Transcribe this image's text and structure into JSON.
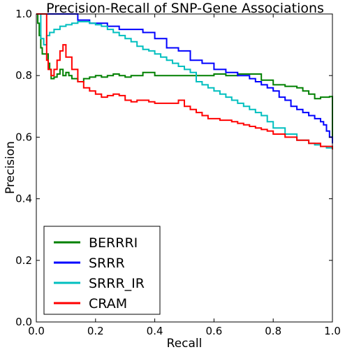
{
  "chart_data": {
    "type": "line",
    "title": "Precision-Recall of SNP-Gene Associations",
    "xlabel": "Recall",
    "ylabel": "Precision",
    "xlim": [
      0,
      1
    ],
    "ylim": [
      0,
      1
    ],
    "xticks": [
      "0.0",
      "0.2",
      "0.4",
      "0.6",
      "0.8",
      "1.0"
    ],
    "yticks": [
      "0.0",
      "0.2",
      "0.4",
      "0.6",
      "0.8",
      "1.0"
    ],
    "grid": false,
    "legend_position": "lower-left",
    "series": [
      {
        "name": "BERRRI",
        "color": "#008000",
        "x": [
          0.0,
          0.005,
          0.01,
          0.015,
          0.02,
          0.025,
          0.035,
          0.04,
          0.045,
          0.05,
          0.06,
          0.07,
          0.08,
          0.09,
          0.1,
          0.11,
          0.12,
          0.14,
          0.16,
          0.18,
          0.2,
          0.22,
          0.24,
          0.26,
          0.28,
          0.3,
          0.32,
          0.36,
          0.4,
          0.44,
          0.48,
          0.52,
          0.56,
          0.6,
          0.64,
          0.68,
          0.72,
          0.76,
          0.8,
          0.84,
          0.88,
          0.9,
          0.92,
          0.94,
          0.96,
          0.98,
          0.99,
          1.0
        ],
        "y": [
          1.0,
          0.97,
          0.93,
          0.89,
          0.87,
          0.87,
          0.87,
          0.84,
          0.82,
          0.79,
          0.795,
          0.805,
          0.82,
          0.8,
          0.81,
          0.8,
          0.79,
          0.78,
          0.79,
          0.795,
          0.8,
          0.795,
          0.8,
          0.805,
          0.8,
          0.795,
          0.8,
          0.81,
          0.8,
          0.8,
          0.8,
          0.8,
          0.8,
          0.805,
          0.8,
          0.805,
          0.805,
          0.785,
          0.77,
          0.765,
          0.76,
          0.75,
          0.74,
          0.725,
          0.73,
          0.73,
          0.732,
          0.6
        ]
      },
      {
        "name": "SRRR",
        "color": "#0000ff",
        "x": [
          0.0,
          0.02,
          0.04,
          0.1,
          0.14,
          0.18,
          0.2,
          0.24,
          0.28,
          0.32,
          0.36,
          0.4,
          0.44,
          0.48,
          0.52,
          0.56,
          0.6,
          0.64,
          0.68,
          0.72,
          0.74,
          0.76,
          0.78,
          0.8,
          0.82,
          0.84,
          0.86,
          0.88,
          0.9,
          0.92,
          0.94,
          0.96,
          0.97,
          0.98,
          0.99,
          1.0
        ],
        "y": [
          1.0,
          1.0,
          1.0,
          1.0,
          0.98,
          0.97,
          0.97,
          0.96,
          0.95,
          0.95,
          0.94,
          0.92,
          0.89,
          0.88,
          0.85,
          0.84,
          0.82,
          0.81,
          0.8,
          0.79,
          0.78,
          0.77,
          0.76,
          0.75,
          0.73,
          0.72,
          0.7,
          0.69,
          0.68,
          0.67,
          0.66,
          0.65,
          0.64,
          0.62,
          0.6,
          0.58
        ]
      },
      {
        "name": "SRRR_IR",
        "color": "#00bfbf",
        "x": [
          0.0,
          0.015,
          0.025,
          0.035,
          0.045,
          0.06,
          0.08,
          0.1,
          0.12,
          0.14,
          0.16,
          0.18,
          0.2,
          0.22,
          0.24,
          0.26,
          0.28,
          0.3,
          0.32,
          0.34,
          0.36,
          0.38,
          0.4,
          0.42,
          0.44,
          0.46,
          0.48,
          0.5,
          0.52,
          0.54,
          0.56,
          0.58,
          0.6,
          0.62,
          0.64,
          0.66,
          0.68,
          0.7,
          0.72,
          0.74,
          0.76,
          0.78,
          0.8,
          0.84,
          0.88,
          0.92,
          0.94,
          0.96,
          0.98,
          1.0
        ],
        "y": [
          1.0,
          0.92,
          0.9,
          0.93,
          0.94,
          0.95,
          0.96,
          0.965,
          0.97,
          0.975,
          0.975,
          0.97,
          0.965,
          0.96,
          0.95,
          0.94,
          0.93,
          0.92,
          0.91,
          0.895,
          0.885,
          0.88,
          0.87,
          0.86,
          0.85,
          0.84,
          0.83,
          0.82,
          0.81,
          0.78,
          0.77,
          0.76,
          0.75,
          0.74,
          0.73,
          0.72,
          0.71,
          0.7,
          0.69,
          0.68,
          0.67,
          0.65,
          0.63,
          0.61,
          0.59,
          0.58,
          0.575,
          0.57,
          0.565,
          0.56
        ]
      },
      {
        "name": "CRAM",
        "color": "#ff0000",
        "x": [
          0.0,
          0.01,
          0.02,
          0.03,
          0.035,
          0.04,
          0.05,
          0.06,
          0.07,
          0.08,
          0.09,
          0.1,
          0.12,
          0.14,
          0.16,
          0.18,
          0.2,
          0.22,
          0.24,
          0.26,
          0.28,
          0.3,
          0.32,
          0.34,
          0.36,
          0.38,
          0.4,
          0.42,
          0.44,
          0.46,
          0.48,
          0.5,
          0.52,
          0.54,
          0.56,
          0.58,
          0.6,
          0.62,
          0.64,
          0.66,
          0.68,
          0.7,
          0.72,
          0.74,
          0.76,
          0.78,
          0.8,
          0.84,
          0.88,
          0.92,
          0.96,
          1.0
        ],
        "y": [
          1.0,
          1.0,
          1.0,
          1.0,
          0.85,
          0.82,
          0.8,
          0.82,
          0.85,
          0.88,
          0.9,
          0.86,
          0.82,
          0.78,
          0.76,
          0.75,
          0.74,
          0.73,
          0.735,
          0.74,
          0.735,
          0.72,
          0.715,
          0.72,
          0.72,
          0.715,
          0.71,
          0.71,
          0.71,
          0.71,
          0.72,
          0.7,
          0.69,
          0.68,
          0.67,
          0.66,
          0.66,
          0.655,
          0.655,
          0.65,
          0.645,
          0.64,
          0.635,
          0.63,
          0.625,
          0.62,
          0.61,
          0.6,
          0.59,
          0.58,
          0.57,
          0.56
        ]
      }
    ]
  }
}
